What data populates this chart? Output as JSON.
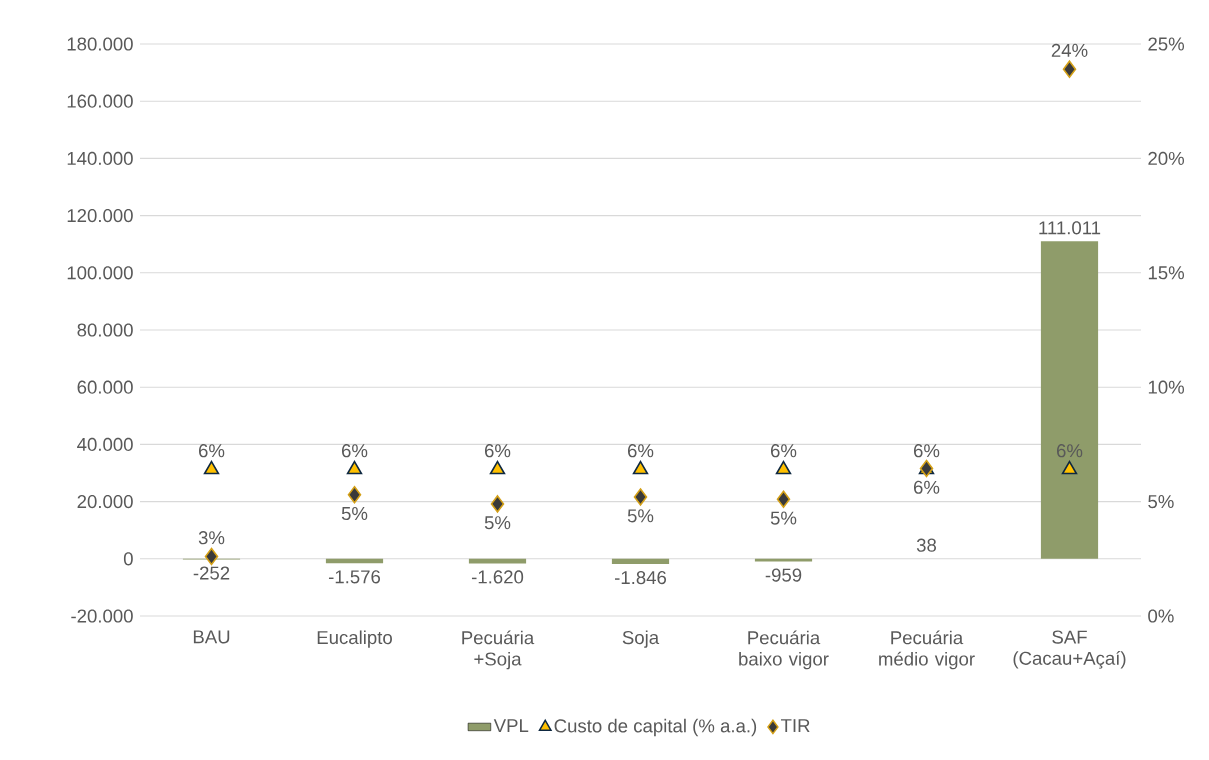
{
  "chart_data": {
    "type": "bar",
    "categories": [
      "BAU",
      "Eucalipto",
      "Pecuária +Soja",
      "Soja",
      "Pecuária baixo vigor",
      "Pecuária médio vigor",
      "SAF (Cacau+Açaí)"
    ],
    "series": [
      {
        "name": "VPL",
        "color": "#8f9c6a",
        "values": [
          -252,
          -1576,
          -1620,
          -1846,
          -959,
          38,
          111011
        ],
        "value_labels": [
          "-252",
          "-1.576",
          "-1.620",
          "-1.846",
          "-959",
          "38",
          "111.011"
        ]
      },
      {
        "name": "Custo de capital (% a.a.)",
        "type": "scatter",
        "axis": "y2",
        "marker": "triangle",
        "color": "#ffc000",
        "values": [
          6.4,
          6.4,
          6.4,
          6.4,
          6.4,
          6.4,
          6.4
        ],
        "value_labels": [
          "6%",
          "6%",
          "6%",
          "6%",
          "6%",
          "6%",
          "6%"
        ]
      },
      {
        "name": "TIR",
        "type": "scatter",
        "axis": "y2",
        "marker": "diamond",
        "color": "#3a3a3a",
        "values": [
          2.6,
          5.3,
          4.9,
          5.2,
          5.1,
          6.45,
          23.9
        ],
        "value_labels": [
          "3%",
          "5%",
          "5%",
          "5%",
          "5%",
          "6%",
          "24%"
        ]
      }
    ],
    "ylim": [
      -20000,
      180000
    ],
    "yticks": [
      {
        "value": -20000,
        "label": "-20.000"
      },
      0,
      {
        "value": 20000,
        "label": "20.000"
      },
      {
        "value": 40000,
        "label": "40.000"
      },
      {
        "value": 60000,
        "label": "60.000"
      },
      {
        "value": 80000,
        "label": "80.000"
      },
      {
        "value": 100000,
        "label": "100.000"
      },
      {
        "value": 120000,
        "label": "120.000"
      },
      {
        "value": 140000,
        "label": "140.000"
      },
      {
        "value": 160000,
        "label": "160.000"
      },
      {
        "value": 180000,
        "label": "180.000"
      }
    ],
    "y2lim": [
      0,
      25
    ],
    "y2ticks": [
      {
        "value": 0,
        "label": "0%"
      },
      {
        "value": 5,
        "label": "5%"
      },
      {
        "value": 10,
        "label": "10%"
      },
      {
        "value": 15,
        "label": "15%"
      },
      {
        "value": 20,
        "label": "20%"
      },
      {
        "value": 25,
        "label": "25%"
      }
    ],
    "grid": "y",
    "legend": "bottom"
  }
}
